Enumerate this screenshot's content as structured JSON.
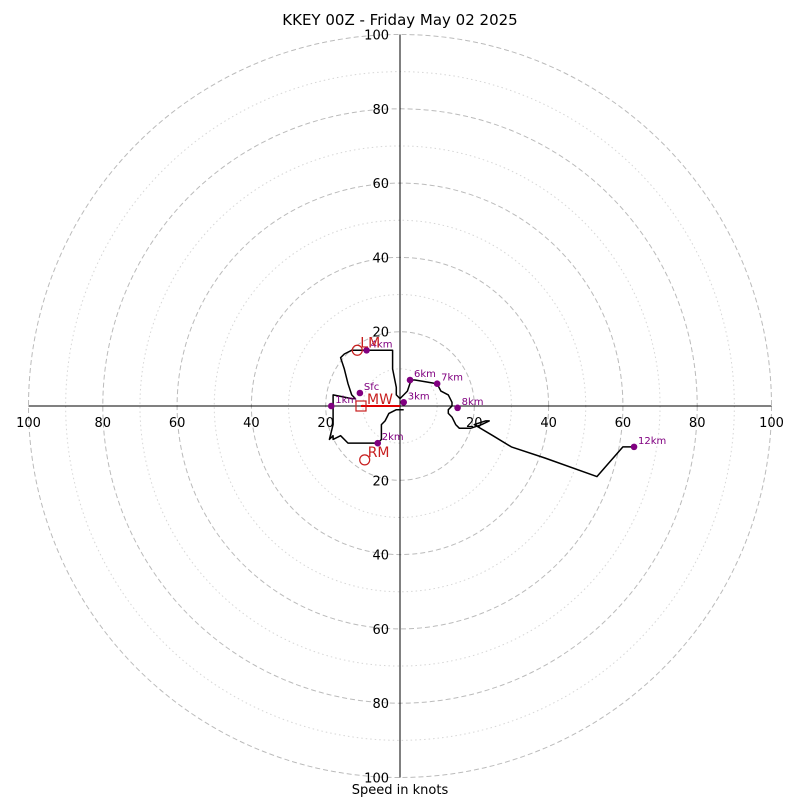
{
  "chart_data": {
    "type": "line",
    "title": "KKEY 00Z - Friday May 02 2025",
    "xlabel": "Speed in knots",
    "ylabel": "",
    "rings_major": [
      20,
      40,
      60,
      80,
      100
    ],
    "rings_minor": [
      10,
      30,
      50,
      70,
      90
    ],
    "max_speed": 100,
    "ticks_x": [
      "100",
      "80",
      "60",
      "40",
      "20",
      "20",
      "40",
      "60",
      "80",
      "100"
    ],
    "ticks_y": [
      "100",
      "80",
      "60",
      "40",
      "20",
      "20",
      "40",
      "60",
      "80",
      "100"
    ],
    "grid": true,
    "colors": {
      "trace": "#000000",
      "height_marker": "#800080",
      "storm_motion": "#c81e1e",
      "mean_wind_vector": "#dd0000",
      "ring": "#bbbbbb"
    },
    "hodograph_uv": [
      [
        1,
        -1
      ],
      [
        -1,
        -1
      ],
      [
        -3,
        -2
      ],
      [
        -4,
        -4
      ],
      [
        -5,
        -5
      ],
      [
        -5,
        -9
      ],
      [
        -6,
        -10
      ],
      [
        -9,
        -10
      ],
      [
        -12,
        -10
      ],
      [
        -13,
        -10
      ],
      [
        -14,
        -10
      ],
      [
        -16,
        -8
      ],
      [
        -18,
        -9
      ],
      [
        -18,
        -8
      ],
      [
        -19,
        -9
      ],
      [
        -18,
        -5
      ],
      [
        -18,
        -3
      ],
      [
        -18,
        -1
      ],
      [
        -18,
        1
      ],
      [
        -18,
        3
      ],
      [
        -13,
        2
      ],
      [
        -12,
        2
      ],
      [
        -13,
        3
      ],
      [
        -14,
        6
      ],
      [
        -15,
        10
      ],
      [
        -16,
        13
      ],
      [
        -15,
        14
      ],
      [
        -13,
        15
      ],
      [
        -12,
        15
      ],
      [
        -8,
        15
      ],
      [
        -2,
        15
      ],
      [
        -2,
        10
      ],
      [
        -1,
        5
      ],
      [
        -1,
        3
      ],
      [
        0,
        2
      ],
      [
        1,
        3
      ],
      [
        2,
        4
      ],
      [
        3,
        7
      ],
      [
        4,
        7
      ],
      [
        10,
        6
      ],
      [
        11,
        4
      ],
      [
        13,
        3
      ],
      [
        14,
        1
      ],
      [
        14,
        0
      ],
      [
        13,
        -1
      ],
      [
        13,
        -2
      ],
      [
        14,
        -3
      ],
      [
        15,
        -5
      ],
      [
        16,
        -6
      ],
      [
        19,
        -6
      ],
      [
        22,
        -5
      ],
      [
        24,
        -4
      ],
      [
        23,
        -4
      ],
      [
        20,
        -5
      ],
      [
        25,
        -8
      ],
      [
        30,
        -11
      ],
      [
        39,
        -14
      ],
      [
        53,
        -19
      ],
      [
        60,
        -11
      ],
      [
        63,
        -11
      ]
    ],
    "height_markers": [
      {
        "label": "Sfc",
        "u": -10.8,
        "v": 3.5
      },
      {
        "label": "1km",
        "u": -18.5,
        "v": 0
      },
      {
        "label": "2km",
        "u": -6,
        "v": -10
      },
      {
        "label": "3km",
        "u": 1,
        "v": 1
      },
      {
        "label": "4km",
        "u": -9,
        "v": 15
      },
      {
        "label": "6km",
        "u": 2.7,
        "v": 7
      },
      {
        "label": "7km",
        "u": 10,
        "v": 6
      },
      {
        "label": "8km",
        "u": 15.5,
        "v": -0.5
      },
      {
        "label": "12km",
        "u": 63,
        "v": -11
      }
    ],
    "storm_motions": [
      {
        "label": "LM",
        "u": -11.5,
        "v": 15
      },
      {
        "label": "RM",
        "u": -9.5,
        "v": -14.5
      },
      {
        "label": "MW",
        "u": -10.5,
        "v": 0
      }
    ]
  }
}
